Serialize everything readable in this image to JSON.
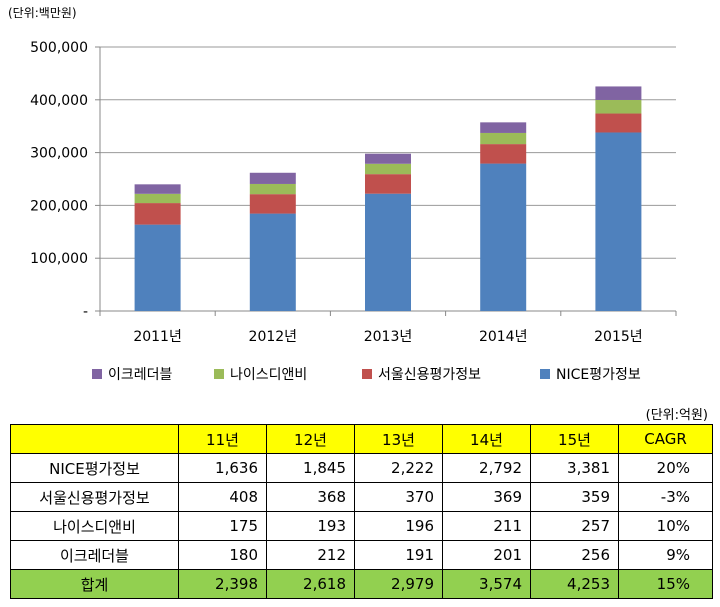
{
  "unit_label": "(단위:백만원)",
  "table_unit_label": "(단위:억원)",
  "chart_data": {
    "type": "bar",
    "stacked": true,
    "categories": [
      "2011년",
      "2012년",
      "2013년",
      "2014년",
      "2015년"
    ],
    "series": [
      {
        "name": "NICE평가정보",
        "color": "#4f81bd",
        "values": [
          163600,
          184500,
          222200,
          279200,
          338100
        ]
      },
      {
        "name": "서울신용평가정보",
        "color": "#c0504d",
        "values": [
          40800,
          36800,
          37000,
          36900,
          35900
        ]
      },
      {
        "name": "나이스디앤비",
        "color": "#9bbb59",
        "values": [
          17500,
          19300,
          19600,
          21100,
          25700
        ]
      },
      {
        "name": "이크레더블",
        "color": "#8064a2",
        "values": [
          18000,
          21200,
          19100,
          20100,
          25600
        ]
      }
    ],
    "legend_order": [
      "이크레더블",
      "나이스디앤비",
      "서울신용평가정보",
      "NICE평가정보"
    ],
    "legend_position": "bottom",
    "ylim": [
      0,
      500000
    ],
    "yticks": [
      "-",
      "100,000",
      "200,000",
      "300,000",
      "400,000",
      "500,000"
    ],
    "grid": true
  },
  "table": {
    "headers": [
      "",
      "11년",
      "12년",
      "13년",
      "14년",
      "15년",
      "CAGR"
    ],
    "rows": [
      {
        "label": "NICE평가정보",
        "values": [
          "1,636",
          "1,845",
          "2,222",
          "2,792",
          "3,381"
        ],
        "cagr": "20%"
      },
      {
        "label": "서울신용평가정보",
        "values": [
          "408",
          "368",
          "370",
          "369",
          "359"
        ],
        "cagr": "-3%"
      },
      {
        "label": "나이스디앤비",
        "values": [
          "175",
          "193",
          "196",
          "211",
          "257"
        ],
        "cagr": "10%"
      },
      {
        "label": "이크레더블",
        "values": [
          "180",
          "212",
          "191",
          "201",
          "256"
        ],
        "cagr": "9%"
      }
    ],
    "total": {
      "label": "합계",
      "values": [
        "2,398",
        "2,618",
        "2,979",
        "3,574",
        "4,253"
      ],
      "cagr": "15%"
    }
  }
}
